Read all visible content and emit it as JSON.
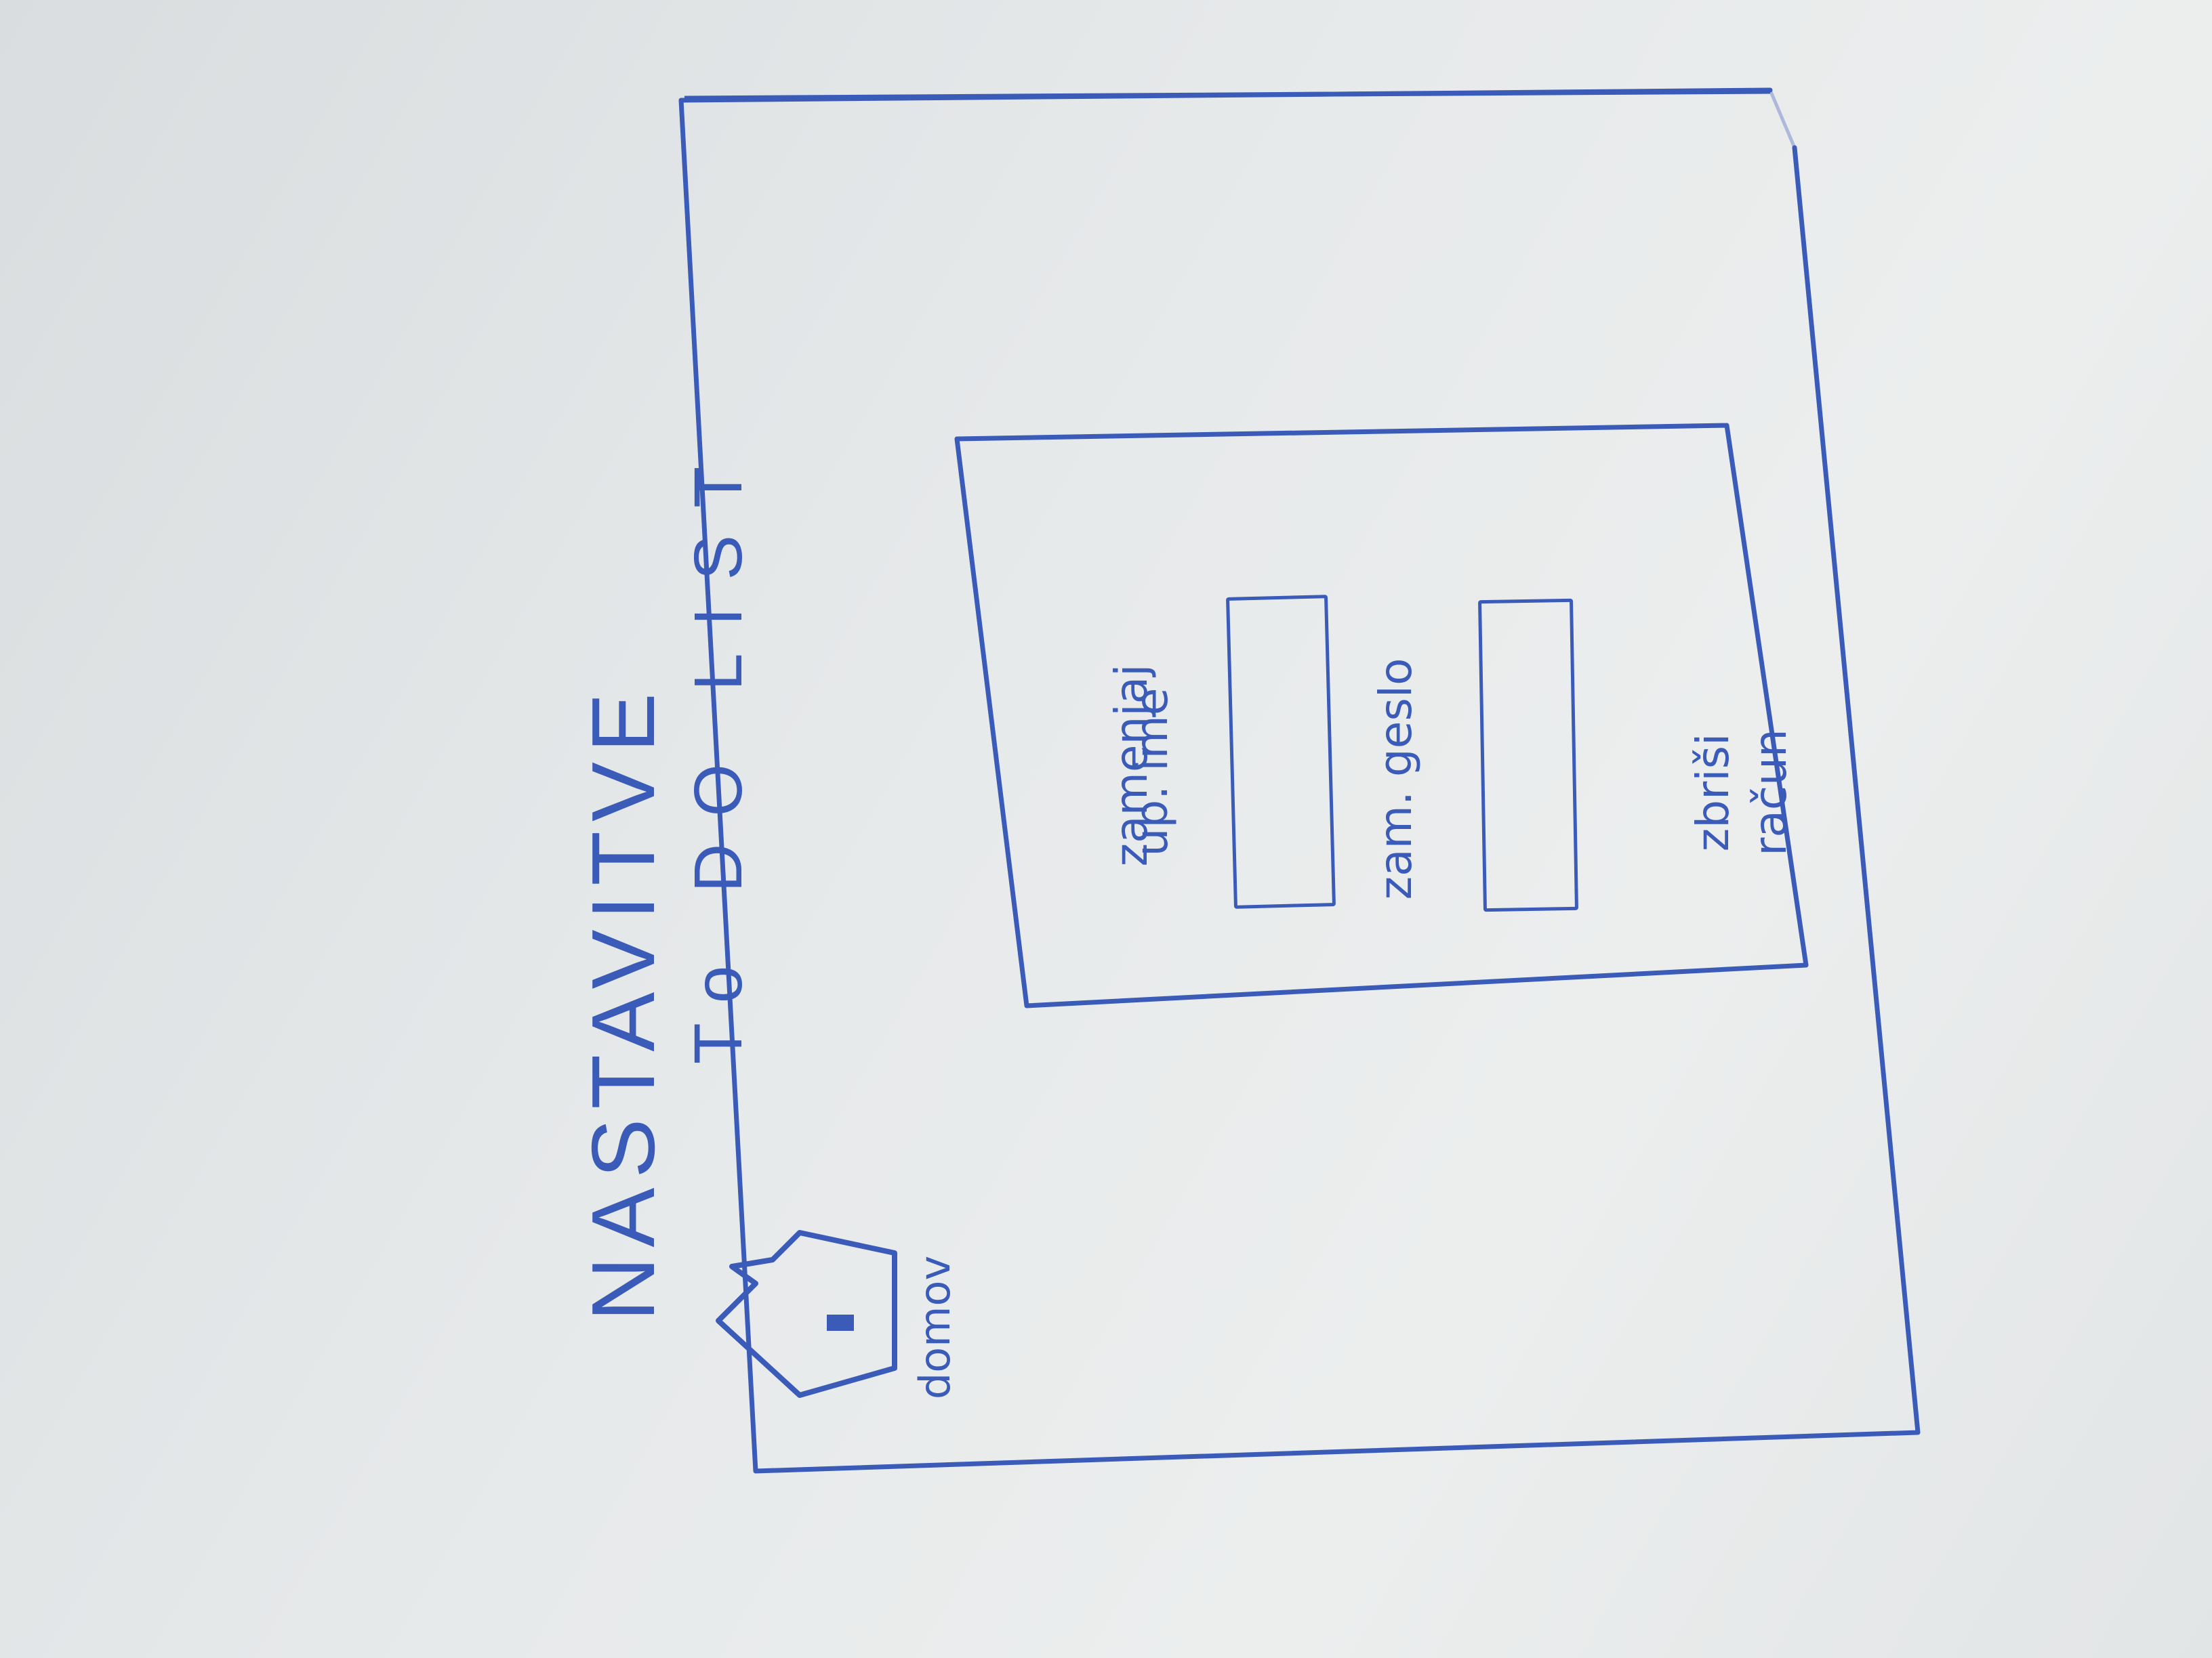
{
  "page": {
    "title": "NASTAVITVE"
  },
  "app": {
    "title": "To DO LIST"
  },
  "nav": {
    "home_label": "domov"
  },
  "settings_panel": {
    "change_username_label_line1": "zamenjaj",
    "change_username_label_line2": "up. ime",
    "change_password_label": "zam. geslo",
    "delete_account_label_line1": "zbriši",
    "delete_account_label_line2": "račun"
  },
  "colors": {
    "ink": "#3b5bb8",
    "paper": "#e6e9ea"
  },
  "icons": {
    "home": "home-icon"
  }
}
